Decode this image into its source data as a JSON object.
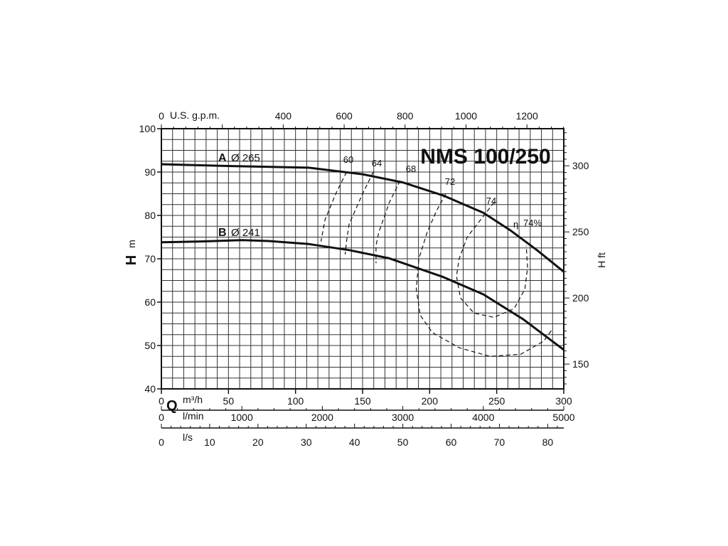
{
  "chart_data": {
    "type": "line",
    "title": "NMS 100/250",
    "x_axis_primary": {
      "unit_label": "m³/h",
      "symbol": "Q",
      "ticks": [
        0,
        50,
        100,
        150,
        200,
        250,
        300
      ],
      "range": [
        0,
        300
      ]
    },
    "x_axis_lmin": {
      "unit_label": "l/min",
      "ticks": [
        0,
        1000,
        2000,
        3000,
        4000,
        5000
      ]
    },
    "x_axis_ls": {
      "unit_label": "l/s",
      "ticks": [
        0,
        10,
        20,
        30,
        40,
        50,
        60,
        70,
        80
      ]
    },
    "x_axis_top": {
      "unit_label": "U.S. g.p.m.",
      "ticks": [
        0,
        400,
        600,
        800,
        1000,
        1200
      ]
    },
    "y_axis_left": {
      "symbol": "H",
      "unit_label": "m",
      "ticks": [
        40,
        50,
        60,
        70,
        80,
        90,
        100
      ],
      "range": [
        40,
        100
      ]
    },
    "y_axis_right": {
      "unit_label": "H ft",
      "ticks": [
        150,
        200,
        250,
        300
      ]
    },
    "grid": true,
    "series": [
      {
        "name": "A",
        "label": "Ø 265",
        "x": [
          0,
          50,
          110,
          150,
          180,
          210,
          240,
          260,
          280,
          300
        ],
        "y": [
          91.8,
          91.4,
          91,
          89.5,
          87.6,
          84.6,
          80.6,
          76.6,
          72,
          67
        ]
      },
      {
        "name": "B",
        "label": "Ø 241",
        "x": [
          0,
          30,
          60,
          80,
          110,
          140,
          170,
          210,
          240,
          270,
          300
        ],
        "y": [
          73.8,
          74,
          74.3,
          74.1,
          73.4,
          72,
          70.1,
          65.8,
          61.8,
          56,
          49
        ]
      }
    ],
    "efficiency_contours": {
      "symbol": "η",
      "unit": "%",
      "labels": [
        "60",
        "64",
        "68",
        "72",
        "74",
        "74%"
      ],
      "curves": [
        {
          "value": 60,
          "x": [
            138,
            130,
            122,
            119
          ],
          "y": [
            90,
            85,
            79,
            74
          ]
        },
        {
          "value": 64,
          "x": [
            158,
            150,
            140,
            138,
            137
          ],
          "y": [
            90,
            85,
            78,
            74,
            71
          ]
        },
        {
          "value": 68,
          "x": [
            178,
            170,
            162,
            160,
            160
          ],
          "y": [
            88,
            83,
            76,
            73,
            69
          ]
        },
        {
          "value": 72,
          "x": [
            212,
            205,
            198,
            192,
            190,
            193,
            202,
            222,
            245,
            268,
            285,
            292
          ],
          "y": [
            85,
            81,
            76,
            70,
            63,
            57,
            53,
            49.5,
            47.5,
            48,
            51,
            54
          ]
        },
        {
          "value": 74,
          "x": [
            248,
            238,
            228,
            222,
            220,
            223,
            233,
            248,
            263,
            271,
            273,
            272
          ],
          "y": [
            83,
            79,
            75,
            70,
            66,
            61,
            57.5,
            56.5,
            58.5,
            63,
            68,
            73
          ]
        }
      ]
    }
  }
}
